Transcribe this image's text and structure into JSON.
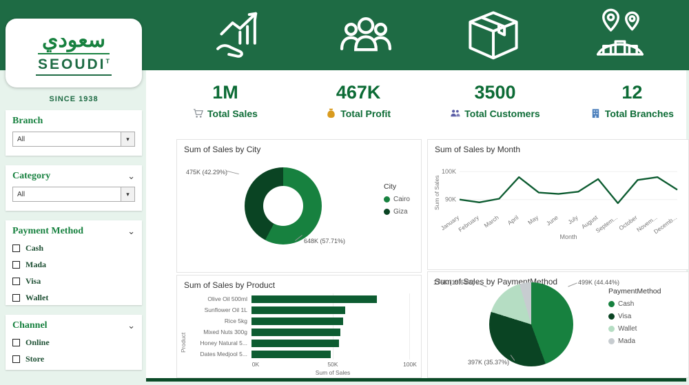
{
  "theme": {
    "header_green": "#1e6b44",
    "page_bg": "#e7f3ec",
    "brand_green": "#0c6b35",
    "chart_green": "#0d5c31",
    "accent_dark_green": "#0a4423",
    "accent_mid_green": "#17813f",
    "accent_light_green": "#b5ddc3",
    "accent_gray": "#c7ccd0"
  },
  "logo": {
    "arabic": "سعودي",
    "name": "SEOUDI",
    "mark": "T",
    "since": "SINCE 1938"
  },
  "header_icons": [
    "growth-chart-icon",
    "customers-icon",
    "package-icon",
    "branches-map-icon"
  ],
  "sidebar": {
    "filters": [
      {
        "title": "Branch",
        "type": "dropdown",
        "value": "All"
      },
      {
        "title": "Category",
        "type": "dropdown",
        "value": "All",
        "chevron": "⌄"
      },
      {
        "title": "Payment Method",
        "type": "checkboxes",
        "chevron": "⌄",
        "options": [
          "Cash",
          "Mada",
          "Visa",
          "Wallet"
        ]
      },
      {
        "title": "Channel",
        "type": "checkboxes",
        "chevron": "⌄",
        "options": [
          "Online",
          "Store"
        ]
      }
    ]
  },
  "kpis": [
    {
      "value": "1M",
      "label": "Total Sales",
      "icon": "cart-icon"
    },
    {
      "value": "467K",
      "label": "Total Profit",
      "icon": "money-bag-icon"
    },
    {
      "value": "3500",
      "label": "Total Customers",
      "icon": "people-icon"
    },
    {
      "value": "12",
      "label": "Total Branches",
      "icon": "building-icon"
    }
  ],
  "chart_data": [
    {
      "type": "donut",
      "title": "Sum of Sales by City",
      "legend_title": "City",
      "legend_position": "right",
      "slices": [
        {
          "name": "Cairo",
          "value": 648000,
          "pct": 57.71,
          "label": "648K (57.71%)",
          "color": "#17813f"
        },
        {
          "name": "Giza",
          "value": 475000,
          "pct": 42.29,
          "label": "475K (42.29%)",
          "color": "#0a4423"
        }
      ]
    },
    {
      "type": "line",
      "title": "Sum of Sales by Month",
      "xlabel": "Month",
      "ylabel": "Sum of Sales",
      "categories": [
        "January",
        "February",
        "March",
        "April",
        "May",
        "June",
        "July",
        "August",
        "Septem...",
        "October",
        "Novem...",
        "Decemb..."
      ],
      "values": [
        90,
        89,
        90.3,
        98,
        92.5,
        92,
        92.8,
        97.3,
        88.7,
        97,
        98,
        93.5
      ],
      "values_unit": "K",
      "ylim": [
        86,
        101
      ],
      "yticks": [
        {
          "label": "90K",
          "value": 90
        },
        {
          "label": "100K",
          "value": 100
        }
      ],
      "grid": true,
      "legend_position": "none"
    },
    {
      "type": "hbar",
      "title": "Sum of Sales by Product",
      "xlabel": "Sum of Sales",
      "ylabel": "Product",
      "categories": [
        "Olive Oil 500ml",
        "Sunflower Oil 1L",
        "Rice 5kg",
        "Mixed Nuts 300g",
        "Honey Natural 5...",
        "Dates Medjool 5..."
      ],
      "values": [
        79000,
        59000,
        58000,
        56000,
        55000,
        50000
      ],
      "xlim": [
        0,
        100000
      ],
      "xticks": [
        "0K",
        "50K",
        "100K"
      ],
      "grid": true,
      "legend_position": "none"
    },
    {
      "type": "pie",
      "title": "Sum of Sales by PaymentMethod",
      "legend_title": "PaymentMethod",
      "legend_position": "right",
      "slices": [
        {
          "name": "Cash",
          "value": 499000,
          "pct": 44.44,
          "label": "499K (44.44%)",
          "color": "#17813f"
        },
        {
          "name": "Visa",
          "value": 397000,
          "pct": 35.37,
          "label": "397K (35.37%)",
          "color": "#0a4423"
        },
        {
          "name": "Wallet",
          "value": 176000,
          "pct": 15.64,
          "label": "176K (15.64%)",
          "color": "#b5ddc3"
        },
        {
          "name": "Mada",
          "pct": 4.55,
          "label": "",
          "color": "#c7ccd0"
        }
      ]
    }
  ]
}
